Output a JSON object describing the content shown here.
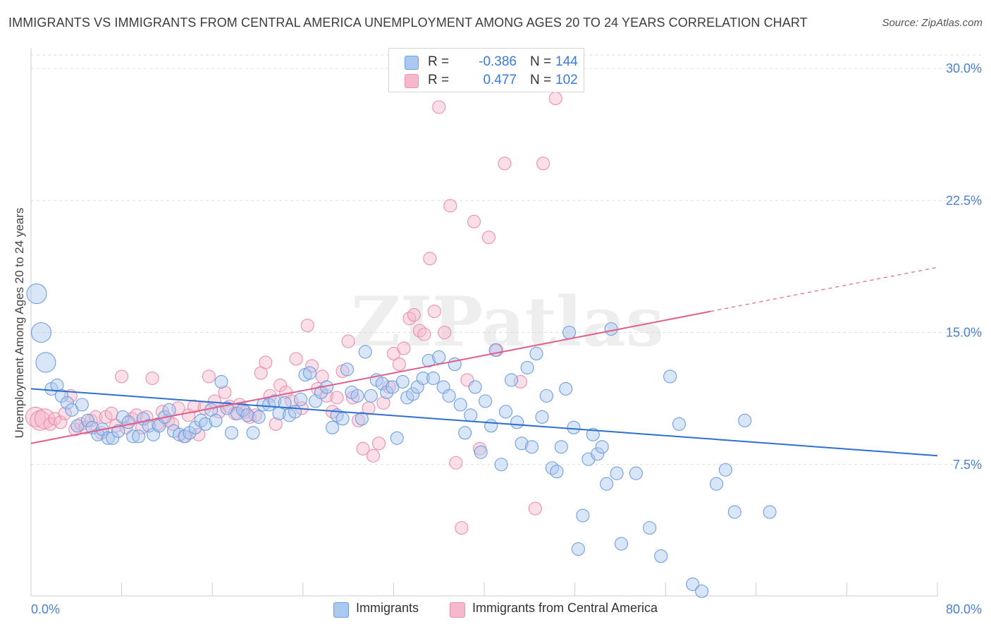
{
  "header": {
    "title": "IMMIGRANTS VS IMMIGRANTS FROM CENTRAL AMERICA UNEMPLOYMENT AMONG AGES 20 TO 24 YEARS CORRELATION CHART",
    "source": "Source: ZipAtlas.com"
  },
  "watermark": "ZIPatlas",
  "legend": {
    "r_label": "R =",
    "n_label": "N =",
    "rows": [
      {
        "r": "-0.386",
        "n": "144"
      },
      {
        "r": "0.477",
        "n": "102"
      }
    ]
  },
  "colors": {
    "immigrants_fill": "#aac8f0",
    "immigrants_stroke": "#6f9ee0",
    "immigrants_line": "#2f6fd0",
    "central_fill": "#f6b8cb",
    "central_stroke": "#ec8fab",
    "central_line": "#e0608c",
    "axis_label": "#4a80d0",
    "grid": "#dddddd"
  },
  "chart_data": {
    "type": "scatter",
    "title": "IMMIGRANTS VS IMMIGRANTS FROM CENTRAL AMERICA UNEMPLOYMENT AMONG AGES 20 TO 24 YEARS CORRELATION CHART",
    "xlabel": "",
    "ylabel": "Unemployment Among Ages 20 to 24 years",
    "xlim": [
      0,
      80
    ],
    "ylim": [
      0,
      30
    ],
    "x_tick_labels": [
      "0.0%",
      "80.0%"
    ],
    "y_ticks": [
      7.5,
      15.0,
      22.5,
      30.0
    ],
    "y_tick_labels": [
      "7.5%",
      "15.0%",
      "22.5%",
      "30.0%"
    ],
    "grid": true,
    "legend_position": "top-center",
    "series": [
      {
        "name": "Immigrants",
        "r": -0.386,
        "n": 144,
        "trend": {
          "x": [
            0,
            80
          ],
          "y": [
            11.8,
            8.0
          ]
        },
        "points": [
          [
            0.5,
            17.2
          ],
          [
            0.9,
            15.0
          ],
          [
            1.3,
            13.3
          ],
          [
            1.8,
            11.8
          ],
          [
            2.3,
            12.0
          ],
          [
            2.7,
            11.4
          ],
          [
            3.2,
            11.0
          ],
          [
            3.6,
            10.6
          ],
          [
            4.1,
            9.7
          ],
          [
            4.5,
            10.9
          ],
          [
            5.0,
            10.0
          ],
          [
            5.4,
            9.6
          ],
          [
            5.9,
            9.2
          ],
          [
            6.3,
            9.5
          ],
          [
            6.8,
            9.0
          ],
          [
            7.2,
            9.0
          ],
          [
            7.7,
            9.4
          ],
          [
            8.1,
            10.2
          ],
          [
            8.6,
            9.9
          ],
          [
            9.0,
            9.1
          ],
          [
            9.5,
            9.1
          ],
          [
            9.9,
            10.1
          ],
          [
            10.4,
            9.7
          ],
          [
            10.8,
            9.2
          ],
          [
            11.3,
            9.7
          ],
          [
            11.8,
            10.2
          ],
          [
            12.2,
            10.6
          ],
          [
            12.6,
            9.4
          ],
          [
            13.1,
            9.2
          ],
          [
            13.6,
            9.1
          ],
          [
            14.0,
            9.3
          ],
          [
            14.5,
            9.6
          ],
          [
            15.0,
            10.0
          ],
          [
            15.4,
            9.8
          ],
          [
            15.9,
            10.6
          ],
          [
            16.3,
            10.0
          ],
          [
            16.8,
            12.2
          ],
          [
            17.3,
            10.7
          ],
          [
            17.7,
            9.3
          ],
          [
            18.2,
            10.4
          ],
          [
            18.7,
            10.6
          ],
          [
            19.1,
            10.3
          ],
          [
            19.6,
            9.3
          ],
          [
            20.1,
            10.2
          ],
          [
            20.5,
            10.9
          ],
          [
            21.0,
            10.9
          ],
          [
            21.5,
            11.1
          ],
          [
            21.9,
            10.4
          ],
          [
            22.4,
            11.0
          ],
          [
            22.8,
            10.3
          ],
          [
            23.3,
            10.5
          ],
          [
            23.8,
            11.2
          ],
          [
            24.2,
            12.6
          ],
          [
            24.6,
            12.7
          ],
          [
            25.1,
            11.1
          ],
          [
            25.6,
            11.6
          ],
          [
            26.1,
            11.9
          ],
          [
            26.6,
            9.6
          ],
          [
            27.0,
            10.3
          ],
          [
            27.5,
            10.1
          ],
          [
            27.9,
            12.9
          ],
          [
            28.3,
            11.6
          ],
          [
            28.8,
            11.4
          ],
          [
            29.2,
            10.1
          ],
          [
            29.5,
            13.9
          ],
          [
            30.0,
            11.4
          ],
          [
            30.5,
            12.3
          ],
          [
            31.0,
            12.1
          ],
          [
            31.4,
            11.6
          ],
          [
            31.9,
            11.9
          ],
          [
            32.3,
            9.0
          ],
          [
            32.8,
            12.2
          ],
          [
            33.2,
            11.3
          ],
          [
            33.7,
            11.5
          ],
          [
            34.1,
            11.9
          ],
          [
            34.6,
            12.4
          ],
          [
            35.1,
            13.4
          ],
          [
            35.5,
            12.4
          ],
          [
            36.0,
            13.6
          ],
          [
            36.4,
            11.9
          ],
          [
            36.9,
            11.4
          ],
          [
            37.4,
            13.2
          ],
          [
            37.9,
            10.9
          ],
          [
            38.3,
            9.3
          ],
          [
            38.8,
            10.3
          ],
          [
            39.2,
            11.9
          ],
          [
            39.7,
            8.2
          ],
          [
            40.1,
            11.1
          ],
          [
            40.6,
            9.7
          ],
          [
            41.0,
            14.0
          ],
          [
            41.5,
            7.5
          ],
          [
            41.9,
            10.5
          ],
          [
            42.4,
            12.3
          ],
          [
            42.9,
            9.9
          ],
          [
            43.3,
            8.7
          ],
          [
            43.8,
            13.0
          ],
          [
            44.2,
            8.5
          ],
          [
            44.6,
            13.8
          ],
          [
            45.1,
            10.2
          ],
          [
            45.5,
            11.4
          ],
          [
            46.0,
            7.3
          ],
          [
            46.4,
            7.1
          ],
          [
            46.8,
            8.5
          ],
          [
            47.2,
            11.8
          ],
          [
            47.5,
            15.0
          ],
          [
            47.9,
            9.6
          ],
          [
            48.3,
            2.7
          ],
          [
            48.7,
            4.6
          ],
          [
            49.2,
            7.8
          ],
          [
            49.6,
            9.2
          ],
          [
            50.0,
            8.1
          ],
          [
            50.4,
            8.5
          ],
          [
            50.8,
            6.4
          ],
          [
            51.2,
            15.2
          ],
          [
            51.7,
            7.0
          ],
          [
            52.1,
            3.0
          ],
          [
            53.4,
            7.0
          ],
          [
            54.6,
            3.9
          ],
          [
            55.6,
            2.3
          ],
          [
            56.4,
            12.5
          ],
          [
            57.2,
            9.8
          ],
          [
            58.4,
            0.7
          ],
          [
            59.2,
            0.3
          ],
          [
            60.5,
            6.4
          ],
          [
            61.3,
            7.2
          ],
          [
            62.1,
            4.8
          ],
          [
            63.0,
            10.0
          ],
          [
            65.2,
            4.8
          ]
        ]
      },
      {
        "name": "Immigrants from Central America",
        "r": 0.477,
        "n": 102,
        "trend": {
          "x": [
            0,
            60
          ],
          "y": [
            8.7,
            16.2
          ]
        },
        "trend_dashed": {
          "x": [
            60,
            80
          ],
          "y": [
            16.2,
            18.7
          ]
        },
        "points": [
          [
            0.4,
            10.2
          ],
          [
            0.8,
            10.0
          ],
          [
            1.2,
            10.1
          ],
          [
            1.7,
            9.8
          ],
          [
            2.1,
            10.1
          ],
          [
            2.6,
            9.9
          ],
          [
            3.0,
            10.4
          ],
          [
            3.5,
            11.4
          ],
          [
            3.9,
            9.5
          ],
          [
            4.4,
            9.8
          ],
          [
            4.8,
            9.6
          ],
          [
            5.3,
            10.0
          ],
          [
            5.7,
            10.2
          ],
          [
            6.2,
            9.3
          ],
          [
            6.6,
            10.2
          ],
          [
            7.1,
            10.4
          ],
          [
            7.5,
            9.7
          ],
          [
            8.0,
            12.5
          ],
          [
            8.4,
            9.6
          ],
          [
            8.9,
            10.1
          ],
          [
            9.3,
            10.3
          ],
          [
            9.8,
            9.6
          ],
          [
            10.2,
            10.2
          ],
          [
            10.7,
            12.4
          ],
          [
            11.2,
            9.8
          ],
          [
            11.6,
            10.5
          ],
          [
            12.1,
            10.0
          ],
          [
            12.5,
            9.8
          ],
          [
            13.0,
            10.7
          ],
          [
            13.5,
            9.1
          ],
          [
            13.9,
            10.3
          ],
          [
            14.4,
            10.8
          ],
          [
            14.8,
            9.2
          ],
          [
            15.3,
            10.7
          ],
          [
            15.7,
            12.5
          ],
          [
            16.2,
            11.1
          ],
          [
            16.6,
            10.5
          ],
          [
            17.1,
            11.6
          ],
          [
            17.5,
            10.8
          ],
          [
            18.0,
            10.4
          ],
          [
            18.4,
            10.9
          ],
          [
            18.9,
            10.5
          ],
          [
            19.3,
            10.2
          ],
          [
            19.8,
            10.3
          ],
          [
            20.3,
            12.7
          ],
          [
            20.7,
            13.3
          ],
          [
            21.1,
            11.4
          ],
          [
            21.6,
            9.8
          ],
          [
            22.0,
            12.0
          ],
          [
            22.5,
            11.6
          ],
          [
            23.0,
            11.1
          ],
          [
            23.4,
            13.5
          ],
          [
            23.9,
            10.7
          ],
          [
            24.4,
            15.4
          ],
          [
            24.8,
            13.1
          ],
          [
            25.3,
            11.8
          ],
          [
            25.7,
            12.5
          ],
          [
            26.1,
            11.4
          ],
          [
            26.6,
            10.5
          ],
          [
            27.0,
            11.3
          ],
          [
            27.5,
            12.8
          ],
          [
            28.0,
            14.5
          ],
          [
            28.4,
            11.3
          ],
          [
            28.9,
            10.0
          ],
          [
            29.3,
            8.4
          ],
          [
            29.8,
            10.7
          ],
          [
            30.2,
            8.0
          ],
          [
            30.7,
            8.7
          ],
          [
            31.1,
            11.0
          ],
          [
            31.6,
            11.9
          ],
          [
            32.0,
            13.8
          ],
          [
            32.5,
            13.2
          ],
          [
            32.9,
            14.1
          ],
          [
            33.4,
            15.8
          ],
          [
            33.8,
            16.0
          ],
          [
            34.3,
            15.1
          ],
          [
            34.7,
            14.9
          ],
          [
            35.2,
            19.2
          ],
          [
            35.6,
            16.2
          ],
          [
            36.0,
            27.8
          ],
          [
            36.5,
            15.0
          ],
          [
            37.0,
            22.2
          ],
          [
            37.5,
            7.6
          ],
          [
            38.0,
            3.9
          ],
          [
            38.5,
            12.3
          ],
          [
            39.1,
            21.3
          ],
          [
            39.6,
            8.4
          ],
          [
            40.4,
            20.4
          ],
          [
            41.1,
            14.0
          ],
          [
            41.8,
            24.6
          ],
          [
            43.2,
            12.2
          ],
          [
            44.5,
            5.0
          ],
          [
            45.2,
            24.6
          ],
          [
            46.3,
            28.3
          ]
        ]
      }
    ]
  },
  "bottom_legend": {
    "items": [
      {
        "label": "Immigrants"
      },
      {
        "label": "Immigrants from Central America"
      }
    ]
  }
}
